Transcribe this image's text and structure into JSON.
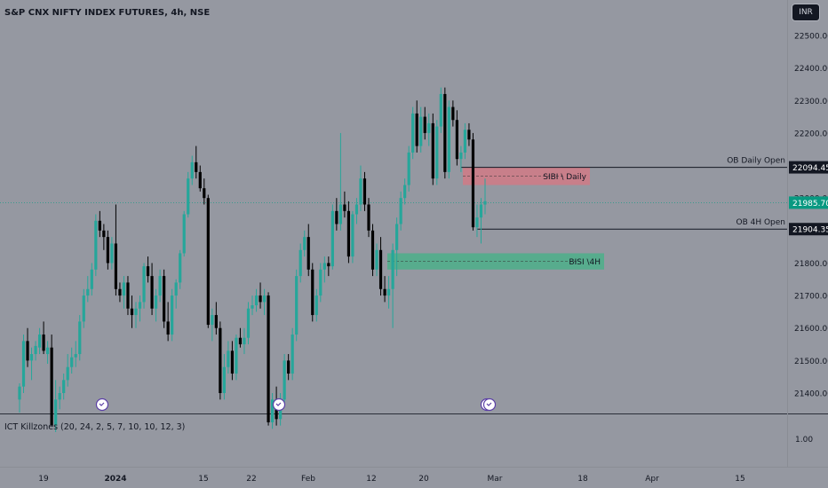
{
  "header": {
    "title": "S&P CNX NIFTY INDEX FUTURES, 4h, NSE",
    "currency": "INR"
  },
  "indicator": {
    "label": "ICT Killzones (20, 24, 2, 5, 7, 10, 10, 12, 3)",
    "value": "1.00"
  },
  "colors": {
    "bull": "#26a69a",
    "bear": "#000000",
    "sibi": "#d17a86",
    "bisi": "#4caf8a",
    "last_price": "#089981"
  },
  "chart_data": {
    "type": "candlestick",
    "title": "S&P CNX NIFTY INDEX FUTURES, 4h, NSE",
    "ylim": [
      21340,
      22560
    ],
    "xlim": [
      0,
      932
    ],
    "price_ticks": [
      {
        "label": "22500.00",
        "value": 22500
      },
      {
        "label": "22400.00",
        "value": 22400
      },
      {
        "label": "22300.00",
        "value": 22300
      },
      {
        "label": "22200.00",
        "value": 22200
      },
      {
        "label": "22000.00",
        "value": 22000
      },
      {
        "label": "21800.00",
        "value": 21800
      },
      {
        "label": "21700.00",
        "value": 21700
      },
      {
        "label": "21600.00",
        "value": 21600
      },
      {
        "label": "21500.00",
        "value": 21500
      },
      {
        "label": "21400.00",
        "value": 21400
      }
    ],
    "time_ticks": [
      {
        "label": "19",
        "x": 49,
        "bold": false
      },
      {
        "label": "2024",
        "x": 130,
        "bold": true
      },
      {
        "label": "15",
        "x": 229,
        "bold": false
      },
      {
        "label": "22",
        "x": 283,
        "bold": false
      },
      {
        "label": "Feb",
        "x": 347,
        "bold": false
      },
      {
        "label": "12",
        "x": 418,
        "bold": false
      },
      {
        "label": "20",
        "x": 477,
        "bold": false
      },
      {
        "label": "Mar",
        "x": 557,
        "bold": false
      },
      {
        "label": "18",
        "x": 656,
        "bold": false
      },
      {
        "label": "Apr",
        "x": 734,
        "bold": false
      },
      {
        "label": "15",
        "x": 833,
        "bold": false
      }
    ],
    "candles": [
      {
        "o": 21380,
        "h": 21430,
        "l": 21340,
        "c": 21420
      },
      {
        "o": 21420,
        "h": 21580,
        "l": 21400,
        "c": 21560
      },
      {
        "o": 21560,
        "h": 21600,
        "l": 21480,
        "c": 21500
      },
      {
        "o": 21500,
        "h": 21540,
        "l": 21440,
        "c": 21520
      },
      {
        "o": 21520,
        "h": 21560,
        "l": 21500,
        "c": 21545
      },
      {
        "o": 21540,
        "h": 21600,
        "l": 21520,
        "c": 21580
      },
      {
        "o": 21580,
        "h": 21620,
        "l": 21520,
        "c": 21530
      },
      {
        "o": 21520,
        "h": 21560,
        "l": 21490,
        "c": 21540
      },
      {
        "o": 21540,
        "h": 21580,
        "l": 21300,
        "c": 21300
      },
      {
        "o": 21300,
        "h": 21440,
        "l": 21280,
        "c": 21380
      },
      {
        "o": 21380,
        "h": 21420,
        "l": 21350,
        "c": 21400
      },
      {
        "o": 21400,
        "h": 21460,
        "l": 21380,
        "c": 21440
      },
      {
        "o": 21440,
        "h": 21520,
        "l": 21420,
        "c": 21480
      },
      {
        "o": 21480,
        "h": 21540,
        "l": 21460,
        "c": 21510
      },
      {
        "o": 21510,
        "h": 21560,
        "l": 21480,
        "c": 21520
      },
      {
        "o": 21520,
        "h": 21640,
        "l": 21500,
        "c": 21620
      },
      {
        "o": 21620,
        "h": 21720,
        "l": 21600,
        "c": 21700
      },
      {
        "o": 21700,
        "h": 21760,
        "l": 21680,
        "c": 21720
      },
      {
        "o": 21720,
        "h": 21800,
        "l": 21700,
        "c": 21780
      },
      {
        "o": 21780,
        "h": 21950,
        "l": 21760,
        "c": 21930
      },
      {
        "o": 21930,
        "h": 21960,
        "l": 21880,
        "c": 21900
      },
      {
        "o": 21900,
        "h": 21920,
        "l": 21840,
        "c": 21880
      },
      {
        "o": 21880,
        "h": 21900,
        "l": 21780,
        "c": 21800
      },
      {
        "o": 21800,
        "h": 21880,
        "l": 21780,
        "c": 21860
      },
      {
        "o": 21860,
        "h": 21980,
        "l": 21700,
        "c": 21720
      },
      {
        "o": 21720,
        "h": 21740,
        "l": 21680,
        "c": 21700
      },
      {
        "o": 21700,
        "h": 21760,
        "l": 21660,
        "c": 21740
      },
      {
        "o": 21740,
        "h": 21760,
        "l": 21640,
        "c": 21660
      },
      {
        "o": 21660,
        "h": 21700,
        "l": 21600,
        "c": 21640
      },
      {
        "o": 21640,
        "h": 21680,
        "l": 21600,
        "c": 21660
      },
      {
        "o": 21660,
        "h": 21700,
        "l": 21620,
        "c": 21680
      },
      {
        "o": 21680,
        "h": 21800,
        "l": 21660,
        "c": 21790
      },
      {
        "o": 21790,
        "h": 21820,
        "l": 21740,
        "c": 21760
      },
      {
        "o": 21760,
        "h": 21800,
        "l": 21640,
        "c": 21660
      },
      {
        "o": 21660,
        "h": 21720,
        "l": 21620,
        "c": 21700
      },
      {
        "o": 21700,
        "h": 21780,
        "l": 21680,
        "c": 21760
      },
      {
        "o": 21760,
        "h": 21780,
        "l": 21600,
        "c": 21620
      },
      {
        "o": 21620,
        "h": 21680,
        "l": 21560,
        "c": 21580
      },
      {
        "o": 21580,
        "h": 21720,
        "l": 21560,
        "c": 21700
      },
      {
        "o": 21700,
        "h": 21750,
        "l": 21660,
        "c": 21740
      },
      {
        "o": 21740,
        "h": 21840,
        "l": 21720,
        "c": 21830
      },
      {
        "o": 21830,
        "h": 21960,
        "l": 21820,
        "c": 21950
      },
      {
        "o": 21950,
        "h": 22080,
        "l": 21940,
        "c": 22060
      },
      {
        "o": 22060,
        "h": 22130,
        "l": 22040,
        "c": 22110
      },
      {
        "o": 22110,
        "h": 22160,
        "l": 22060,
        "c": 22080
      },
      {
        "o": 22080,
        "h": 22100,
        "l": 22020,
        "c": 22030
      },
      {
        "o": 22030,
        "h": 22060,
        "l": 21980,
        "c": 22000
      },
      {
        "o": 22000,
        "h": 22010,
        "l": 21600,
        "c": 21610
      },
      {
        "o": 21610,
        "h": 21660,
        "l": 21560,
        "c": 21640
      },
      {
        "o": 21640,
        "h": 21680,
        "l": 21580,
        "c": 21600
      },
      {
        "o": 21600,
        "h": 21620,
        "l": 21380,
        "c": 21400
      },
      {
        "o": 21400,
        "h": 21520,
        "l": 21380,
        "c": 21480
      },
      {
        "o": 21480,
        "h": 21560,
        "l": 21460,
        "c": 21530
      },
      {
        "o": 21530,
        "h": 21560,
        "l": 21440,
        "c": 21460
      },
      {
        "o": 21460,
        "h": 21580,
        "l": 21440,
        "c": 21570
      },
      {
        "o": 21570,
        "h": 21600,
        "l": 21540,
        "c": 21550
      },
      {
        "o": 21550,
        "h": 21600,
        "l": 21520,
        "c": 21570
      },
      {
        "o": 21570,
        "h": 21680,
        "l": 21550,
        "c": 21660
      },
      {
        "o": 21660,
        "h": 21700,
        "l": 21640,
        "c": 21670
      },
      {
        "o": 21670,
        "h": 21720,
        "l": 21650,
        "c": 21700
      },
      {
        "o": 21700,
        "h": 21740,
        "l": 21660,
        "c": 21680
      },
      {
        "o": 21680,
        "h": 21720,
        "l": 21640,
        "c": 21700
      },
      {
        "o": 21700,
        "h": 21710,
        "l": 21300,
        "c": 21310
      },
      {
        "o": 21310,
        "h": 21400,
        "l": 21290,
        "c": 21380
      },
      {
        "o": 21380,
        "h": 21420,
        "l": 21300,
        "c": 21320
      },
      {
        "o": 21320,
        "h": 21400,
        "l": 21300,
        "c": 21380
      },
      {
        "o": 21380,
        "h": 21520,
        "l": 21360,
        "c": 21500
      },
      {
        "o": 21500,
        "h": 21520,
        "l": 21440,
        "c": 21460
      },
      {
        "o": 21460,
        "h": 21600,
        "l": 21440,
        "c": 21580
      },
      {
        "o": 21580,
        "h": 21780,
        "l": 21560,
        "c": 21760
      },
      {
        "o": 21760,
        "h": 21860,
        "l": 21740,
        "c": 21840
      },
      {
        "o": 21840,
        "h": 21900,
        "l": 21820,
        "c": 21880
      },
      {
        "o": 21880,
        "h": 21920,
        "l": 21760,
        "c": 21780
      },
      {
        "o": 21780,
        "h": 21800,
        "l": 21620,
        "c": 21640
      },
      {
        "o": 21640,
        "h": 21720,
        "l": 21620,
        "c": 21700
      },
      {
        "o": 21700,
        "h": 21800,
        "l": 21680,
        "c": 21780
      },
      {
        "o": 21780,
        "h": 21820,
        "l": 21740,
        "c": 21800
      },
      {
        "o": 21800,
        "h": 21820,
        "l": 21760,
        "c": 21790
      },
      {
        "o": 21790,
        "h": 21980,
        "l": 21780,
        "c": 21960
      },
      {
        "o": 21960,
        "h": 22000,
        "l": 21900,
        "c": 21920
      },
      {
        "o": 21920,
        "h": 22200,
        "l": 21900,
        "c": 21980
      },
      {
        "o": 21980,
        "h": 22020,
        "l": 21940,
        "c": 21960
      },
      {
        "o": 21960,
        "h": 21990,
        "l": 21800,
        "c": 21820
      },
      {
        "o": 21820,
        "h": 21960,
        "l": 21800,
        "c": 21950
      },
      {
        "o": 21950,
        "h": 22000,
        "l": 21920,
        "c": 21980
      },
      {
        "o": 21980,
        "h": 22100,
        "l": 21960,
        "c": 22060
      },
      {
        "o": 22060,
        "h": 22080,
        "l": 21960,
        "c": 21980
      },
      {
        "o": 21980,
        "h": 22000,
        "l": 21880,
        "c": 21900
      },
      {
        "o": 21900,
        "h": 21920,
        "l": 21760,
        "c": 21780
      },
      {
        "o": 21780,
        "h": 21860,
        "l": 21760,
        "c": 21840
      },
      {
        "o": 21840,
        "h": 21880,
        "l": 21700,
        "c": 21720
      },
      {
        "o": 21720,
        "h": 21760,
        "l": 21680,
        "c": 21700
      },
      {
        "o": 21700,
        "h": 21760,
        "l": 21660,
        "c": 21720
      },
      {
        "o": 21720,
        "h": 21860,
        "l": 21600,
        "c": 21840
      },
      {
        "o": 21840,
        "h": 21940,
        "l": 21760,
        "c": 21920
      },
      {
        "o": 21920,
        "h": 22020,
        "l": 21900,
        "c": 22000
      },
      {
        "o": 22000,
        "h": 22060,
        "l": 21980,
        "c": 22040
      },
      {
        "o": 22040,
        "h": 22160,
        "l": 22020,
        "c": 22140
      },
      {
        "o": 22140,
        "h": 22280,
        "l": 22120,
        "c": 22260
      },
      {
        "o": 22260,
        "h": 22300,
        "l": 22140,
        "c": 22160
      },
      {
        "o": 22160,
        "h": 22280,
        "l": 22140,
        "c": 22250
      },
      {
        "o": 22250,
        "h": 22280,
        "l": 22180,
        "c": 22200
      },
      {
        "o": 22200,
        "h": 22260,
        "l": 22160,
        "c": 22230
      },
      {
        "o": 22230,
        "h": 22260,
        "l": 22040,
        "c": 22060
      },
      {
        "o": 22060,
        "h": 22240,
        "l": 22040,
        "c": 22220
      },
      {
        "o": 22220,
        "h": 22340,
        "l": 22200,
        "c": 22320
      },
      {
        "o": 22320,
        "h": 22340,
        "l": 22060,
        "c": 22080
      },
      {
        "o": 22080,
        "h": 22300,
        "l": 22060,
        "c": 22280
      },
      {
        "o": 22280,
        "h": 22300,
        "l": 22220,
        "c": 22240
      },
      {
        "o": 22240,
        "h": 22270,
        "l": 22100,
        "c": 22120
      },
      {
        "o": 22120,
        "h": 22160,
        "l": 22080,
        "c": 22140
      },
      {
        "o": 22140,
        "h": 22230,
        "l": 22120,
        "c": 22210
      },
      {
        "o": 22210,
        "h": 22230,
        "l": 22160,
        "c": 22180
      },
      {
        "o": 22180,
        "h": 22200,
        "l": 21900,
        "c": 21910
      },
      {
        "o": 21910,
        "h": 21980,
        "l": 21880,
        "c": 21940
      },
      {
        "o": 21940,
        "h": 22000,
        "l": 21860,
        "c": 21980
      },
      {
        "o": 21980,
        "h": 22060,
        "l": 21950,
        "c": 21990
      }
    ],
    "lines": [
      {
        "label": "OB Daily Open",
        "value": 22094.45
      },
      {
        "label": "OB 4H Open",
        "value": 21904.35
      }
    ],
    "zones": [
      {
        "label": "SIBI \\ Daily",
        "top": 22094,
        "bottom": 22040
      },
      {
        "label": "BISI \\4H",
        "top": 21830,
        "bottom": 21780
      }
    ],
    "price_labels": [
      {
        "label": "22094.45",
        "value": 22094.45,
        "type": "line"
      },
      {
        "label": "21985.70",
        "value": 21985.7,
        "type": "last"
      },
      {
        "label": "21904.35",
        "value": 21904.35,
        "type": "line"
      }
    ]
  }
}
